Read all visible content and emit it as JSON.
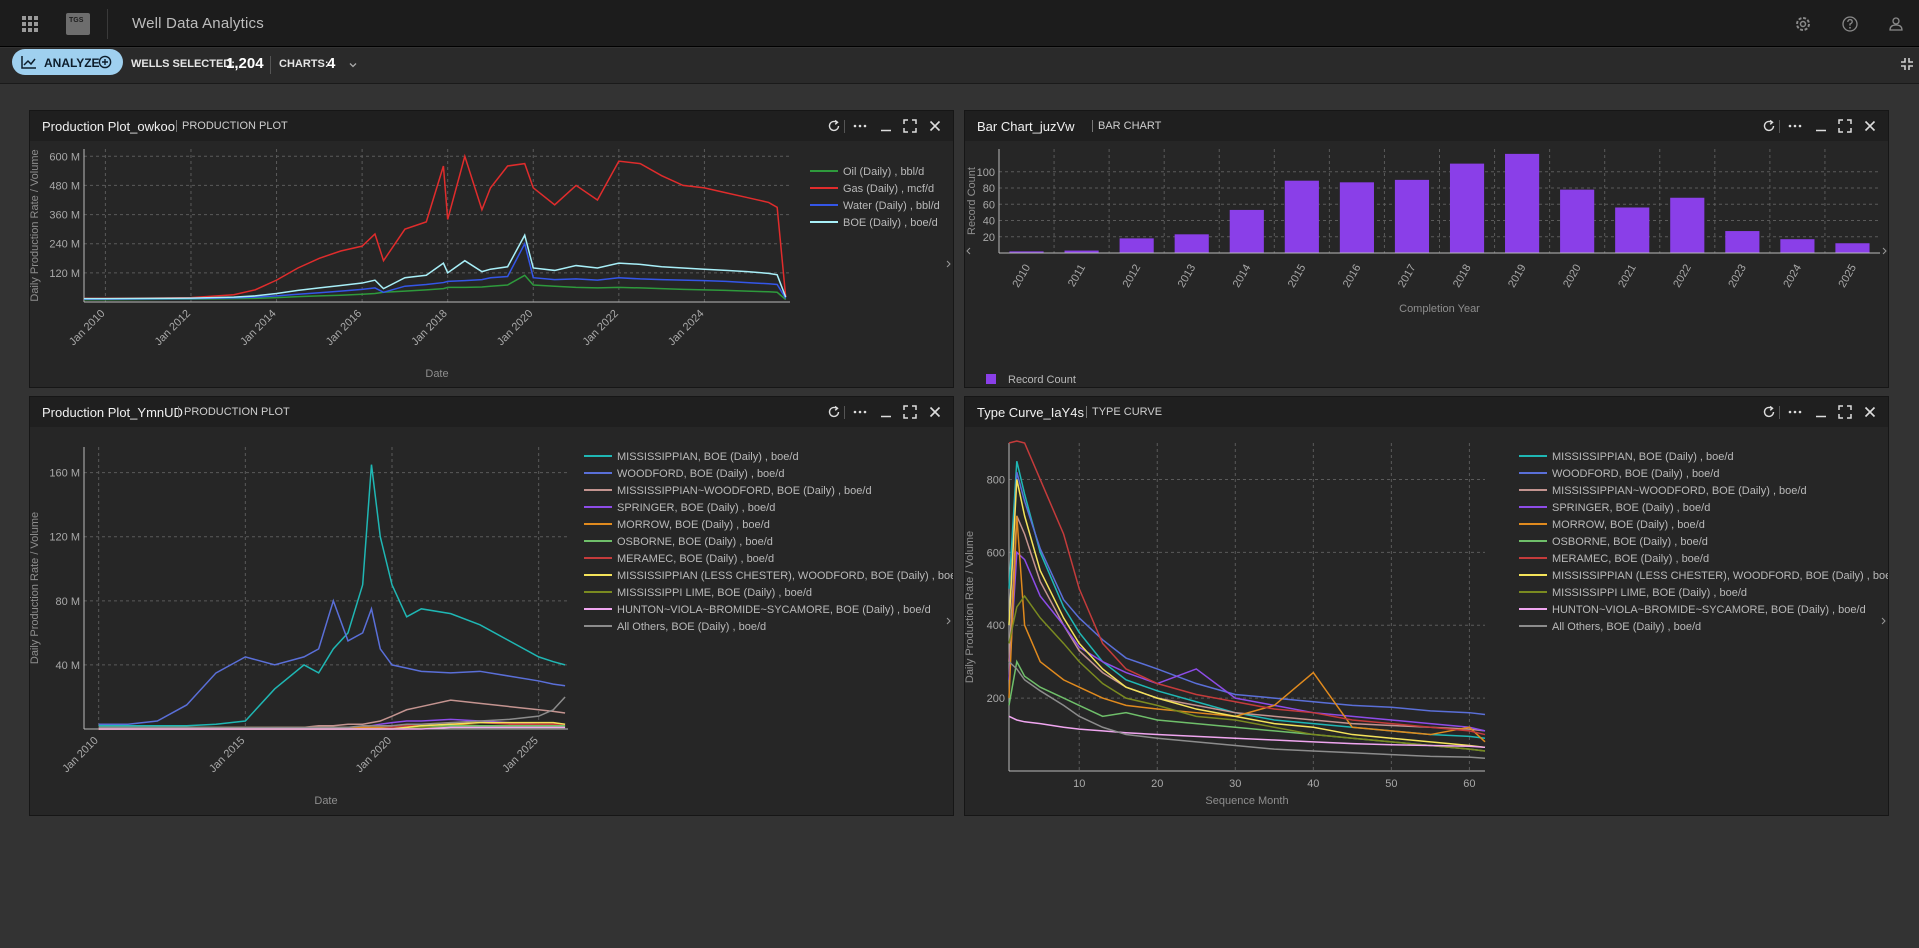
{
  "app": {
    "title": "Well Data Analytics",
    "logo_text": "TGS"
  },
  "toolbar": {
    "analyze_label": "ANALYZE",
    "wells_selected_label": "WELLS SELECTED:",
    "wells_selected_value": "1,204",
    "charts_label": "CHARTS:",
    "charts_value": "4"
  },
  "icons": {
    "apps": "apps-grid-icon",
    "settings": "gear-icon",
    "help": "help-icon",
    "user": "user-icon",
    "collapse": "collapse-icon"
  },
  "colors": {
    "accent": "#9fd0ef",
    "bar": "#8a3fe8",
    "background": "#333333",
    "panel": "#262626"
  },
  "panels": [
    {
      "name": "Production Plot_owkoo",
      "type": "PRODUCTION PLOT"
    },
    {
      "name": "Bar Chart_juzVw",
      "type": "BAR CHART"
    },
    {
      "name": "Production Plot_YmnUD",
      "type": "PRODUCTION PLOT"
    },
    {
      "name": "Type Curve_IaY4s",
      "type": "TYPE CURVE"
    }
  ],
  "chart_data": [
    {
      "type": "line",
      "xlabel": "Date",
      "ylabel": "Daily Production Rate / Volume",
      "x_ticks": [
        "Jan 2010",
        "Jan 2012",
        "Jan 2014",
        "Jan 2016",
        "Jan 2018",
        "Jan 2020",
        "Jan 2022",
        "Jan 2024"
      ],
      "y_ticks": [
        "120 M",
        "240 M",
        "360 M",
        "480 M",
        "600 M"
      ],
      "ylim": [
        0,
        630000000
      ],
      "legend_position": "right",
      "x": [
        2009.5,
        2010,
        2011,
        2012,
        2013,
        2013.5,
        2014,
        2014.5,
        2015,
        2015.5,
        2016,
        2016.3,
        2016.5,
        2017,
        2017.5,
        2017.9,
        2018,
        2018.4,
        2018.8,
        2019,
        2019.4,
        2019.8,
        2020,
        2020.5,
        2021,
        2021.5,
        2022,
        2022.5,
        2023,
        2023.5,
        2024,
        2024.5,
        2025,
        2025.5,
        2025.7,
        2025.9
      ],
      "series": [
        {
          "name": "Oil (Daily) , bbl/d",
          "color": "#2e9a3c",
          "values": [
            10000000.0,
            10000000.0,
            11000000.0,
            12000000.0,
            14000000.0,
            15000000.0,
            18000000.0,
            22000000.0,
            25000000.0,
            28000000.0,
            32000000.0,
            35000000.0,
            40000000.0,
            45000000.0,
            50000000.0,
            55000000.0,
            60000000.0,
            60000000.0,
            62000000.0,
            65000000.0,
            70000000.0,
            110000000.0,
            70000000.0,
            65000000.0,
            60000000.0,
            58000000.0,
            60000000.0,
            58000000.0,
            55000000.0,
            52000000.0,
            50000000.0,
            48000000.0,
            45000000.0,
            42000000.0,
            40000000.0,
            10000000.0
          ]
        },
        {
          "name": "Gas (Daily) , mcf/d",
          "color": "#e02c2c",
          "values": [
            15000000.0,
            15000000.0,
            16000000.0,
            18000000.0,
            30000000.0,
            50000000.0,
            90000000.0,
            140000000.0,
            180000000.0,
            210000000.0,
            230000000.0,
            280000000.0,
            170000000.0,
            300000000.0,
            330000000.0,
            560000000.0,
            340000000.0,
            600000000.0,
            380000000.0,
            470000000.0,
            560000000.0,
            570000000.0,
            470000000.0,
            400000000.0,
            480000000.0,
            420000000.0,
            580000000.0,
            570000000.0,
            520000000.0,
            480000000.0,
            470000000.0,
            450000000.0,
            430000000.0,
            410000000.0,
            390000000.0,
            20000000.0
          ]
        },
        {
          "name": "Water (Daily) , bbl/d",
          "color": "#3456e8",
          "values": [
            12000000.0,
            12000000.0,
            13000000.0,
            14000000.0,
            17000000.0,
            20000000.0,
            25000000.0,
            32000000.0,
            38000000.0,
            45000000.0,
            52000000.0,
            58000000.0,
            40000000.0,
            65000000.0,
            72000000.0,
            80000000.0,
            85000000.0,
            88000000.0,
            92000000.0,
            100000000.0,
            105000000.0,
            240000000.0,
            100000000.0,
            92000000.0,
            95000000.0,
            90000000.0,
            100000000.0,
            95000000.0,
            92000000.0,
            90000000.0,
            88000000.0,
            85000000.0,
            80000000.0,
            75000000.0,
            72000000.0,
            15000000.0
          ]
        },
        {
          "name": "BOE (Daily) , boe/d",
          "color": "#a8eff8",
          "values": [
            14000000.0,
            14000000.0,
            15000000.0,
            16000000.0,
            20000000.0,
            25000000.0,
            35000000.0,
            48000000.0,
            58000000.0,
            68000000.0,
            78000000.0,
            90000000.0,
            55000000.0,
            100000000.0,
            110000000.0,
            160000000.0,
            120000000.0,
            170000000.0,
            125000000.0,
            135000000.0,
            145000000.0,
            275000000.0,
            140000000.0,
            130000000.0,
            150000000.0,
            140000000.0,
            160000000.0,
            155000000.0,
            145000000.0,
            140000000.0,
            135000000.0,
            130000000.0,
            125000000.0,
            118000000.0,
            112000000.0,
            20000000.0
          ]
        }
      ]
    },
    {
      "type": "bar",
      "xlabel": "Completion Year",
      "ylabel": "Record Count",
      "categories": [
        "2010",
        "2011",
        "2012",
        "2013",
        "2014",
        "2015",
        "2016",
        "2017",
        "2018",
        "2019",
        "2020",
        "2021",
        "2022",
        "2023",
        "2024",
        "2025"
      ],
      "values": [
        2,
        3,
        18,
        23,
        53,
        89,
        87,
        90,
        110,
        122,
        78,
        56,
        68,
        27,
        17,
        12
      ],
      "y_ticks": [
        "20",
        "40",
        "60",
        "80",
        "100"
      ],
      "ylim": [
        0,
        128
      ],
      "series_name": "Record Count",
      "legend_position": "bottom-left",
      "color": "#8a3fe8"
    },
    {
      "type": "line",
      "xlabel": "Date",
      "ylabel": "Daily Production Rate / Volume",
      "x_ticks": [
        "Jan 2010",
        "Jan 2015",
        "Jan 2020",
        "Jan 2025"
      ],
      "y_ticks": [
        "40 M",
        "80 M",
        "120 M",
        "160 M"
      ],
      "ylim": [
        0,
        176000000
      ],
      "legend_position": "right",
      "x": [
        2010,
        2011,
        2012,
        2013,
        2014,
        2015,
        2016,
        2017,
        2017.5,
        2018,
        2018.5,
        2019,
        2019.3,
        2019.6,
        2020,
        2020.5,
        2021,
        2022,
        2023,
        2024,
        2025,
        2025.5,
        2025.9
      ],
      "series": [
        {
          "name": "MISSISSIPPIAN, BOE (Daily) , boe/d",
          "color": "#1fb7b4",
          "values": [
            2000000.0,
            2000000.0,
            2000000.0,
            2000000.0,
            3000000.0,
            5000000.0,
            25000000.0,
            40000000.0,
            35000000.0,
            50000000.0,
            60000000.0,
            90000000.0,
            165000000.0,
            120000000.0,
            90000000.0,
            70000000.0,
            75000000.0,
            72000000.0,
            65000000.0,
            55000000.0,
            45000000.0,
            42000000.0,
            40000000.0
          ]
        },
        {
          "name": "WOODFORD, BOE (Daily) , boe/d",
          "color": "#5a6fd8",
          "values": [
            3000000.0,
            3000000.0,
            5000000.0,
            15000000.0,
            35000000.0,
            45000000.0,
            40000000.0,
            45000000.0,
            50000000.0,
            80000000.0,
            55000000.0,
            60000000.0,
            75000000.0,
            50000000.0,
            40000000.0,
            38000000.0,
            36000000.0,
            35000000.0,
            36000000.0,
            33000000.0,
            30000000.0,
            28000000.0,
            27000000.0
          ]
        },
        {
          "name": "MISSISSIPPIAN~WOODFORD, BOE (Daily) , boe/d",
          "color": "#c49490",
          "values": [
            0,
            0,
            0,
            0,
            0,
            0,
            1000000.0,
            1000000.0,
            2000000.0,
            2000000.0,
            3000000.0,
            3000000.0,
            4000000.0,
            5000000.0,
            8000000.0,
            12000000.0,
            14000000.0,
            18000000.0,
            16000000.0,
            14000000.0,
            12000000.0,
            11000000.0,
            10000000.0
          ]
        },
        {
          "name": "SPRINGER, BOE (Daily) , boe/d",
          "color": "#8d4ce8",
          "values": [
            0,
            0,
            0,
            0,
            0,
            0,
            0,
            0,
            0,
            0,
            0,
            1000000.0,
            2000000.0,
            3000000.0,
            4000000.0,
            5000000.0,
            5000000.0,
            6000000.0,
            5000000.0,
            4000000.0,
            3000000.0,
            3000000.0,
            3000000.0
          ]
        },
        {
          "name": "MORROW, BOE (Daily) , boe/d",
          "color": "#e08a1e",
          "values": [
            1000000.0,
            1000000.0,
            1000000.0,
            1000000.0,
            1000000.0,
            1000000.0,
            1000000.0,
            1000000.0,
            1000000.0,
            1000000.0,
            1000000.0,
            1000000.0,
            1000000.0,
            1000000.0,
            1000000.0,
            2000000.0,
            2000000.0,
            3000000.0,
            2000000.0,
            2000000.0,
            2000000.0,
            2000000.0,
            2000000.0
          ]
        },
        {
          "name": "OSBORNE, BOE (Daily) , boe/d",
          "color": "#6fbf6a",
          "values": [
            0,
            0,
            0,
            0,
            0,
            0,
            0,
            0,
            0,
            0,
            0,
            0,
            0,
            0,
            1000000.0,
            1000000.0,
            1000000.0,
            2000000.0,
            2000000.0,
            2000000.0,
            2000000.0,
            2000000.0,
            2000000.0
          ]
        },
        {
          "name": "MERAMEC, BOE (Daily) , boe/d",
          "color": "#c43b3b",
          "values": [
            0,
            0,
            0,
            0,
            0,
            0,
            0,
            0,
            0,
            0,
            0,
            0,
            0,
            0,
            1000000.0,
            2000000.0,
            3000000.0,
            4000000.0,
            4000000.0,
            3000000.0,
            3000000.0,
            3000000.0,
            3000000.0
          ]
        },
        {
          "name": "MISSISSIPPIAN (LESS CHESTER), WOODFORD, BOE (Daily) , boe/d",
          "color": "#f4e35a",
          "values": [
            0,
            0,
            0,
            0,
            0,
            0,
            0,
            0,
            0,
            0,
            0,
            0,
            0,
            0,
            0,
            1000000.0,
            2000000.0,
            3000000.0,
            4000000.0,
            4000000.0,
            4000000.0,
            4000000.0,
            3000000.0
          ]
        },
        {
          "name": "MISSISSIPPI LIME, BOE (Daily) , boe/d",
          "color": "#7a8a20",
          "values": [
            0,
            0,
            0,
            0,
            0,
            0,
            0,
            0,
            0,
            0,
            0,
            0,
            0,
            0,
            0,
            0,
            1000000.0,
            1000000.0,
            1000000.0,
            1000000.0,
            1000000.0,
            1000000.0,
            1000000.0
          ]
        },
        {
          "name": "HUNTON~VIOLA~BROMIDE~SYCAMORE, BOE (Daily) , boe/d",
          "color": "#f0a6f0",
          "values": [
            0,
            0,
            0,
            0,
            0,
            0,
            0,
            0,
            0,
            0,
            0,
            0,
            0,
            0,
            0,
            0,
            0,
            1000000.0,
            1000000.0,
            1000000.0,
            1000000.0,
            1000000.0,
            1000000.0
          ]
        },
        {
          "name": "All Others, BOE (Daily) , boe/d",
          "color": "#8c8c8c",
          "values": [
            1000000.0,
            1000000.0,
            1000000.0,
            1000000.0,
            1000000.0,
            1000000.0,
            1000000.0,
            1000000.0,
            1000000.0,
            1000000.0,
            1000000.0,
            2000000.0,
            2000000.0,
            2000000.0,
            2000000.0,
            3000000.0,
            3000000.0,
            4000000.0,
            5000000.0,
            6000000.0,
            8000000.0,
            12000000.0,
            20000000.0
          ]
        }
      ]
    },
    {
      "type": "line",
      "xlabel": "Sequence Month",
      "ylabel": "Daily Production Rate / Volume",
      "x_ticks": [
        "10",
        "20",
        "30",
        "40",
        "50",
        "60"
      ],
      "y_ticks": [
        "200",
        "400",
        "600",
        "800"
      ],
      "xlim": [
        1,
        62
      ],
      "ylim": [
        0,
        900
      ],
      "legend_position": "right",
      "x": [
        1,
        2,
        3,
        5,
        8,
        10,
        13,
        16,
        20,
        25,
        30,
        35,
        40,
        45,
        50,
        55,
        60,
        62
      ],
      "series": [
        {
          "name": "MISSISSIPPIAN, BOE (Daily) , boe/d",
          "color": "#1fb7b4",
          "values": [
            500,
            850,
            760,
            600,
            450,
            380,
            300,
            250,
            220,
            190,
            160,
            140,
            130,
            120,
            110,
            100,
            95,
            90
          ]
        },
        {
          "name": "WOODFORD, BOE (Daily) , boe/d",
          "color": "#5a6fd8",
          "values": [
            400,
            820,
            740,
            610,
            470,
            420,
            360,
            310,
            280,
            240,
            210,
            200,
            190,
            180,
            175,
            165,
            160,
            155
          ]
        },
        {
          "name": "MISSISSIPPIAN~WOODFORD, BOE (Daily) , boe/d",
          "color": "#c49490",
          "values": [
            300,
            700,
            650,
            520,
            400,
            330,
            270,
            230,
            200,
            180,
            160,
            150,
            140,
            130,
            125,
            120,
            115,
            110
          ]
        },
        {
          "name": "SPRINGER, BOE (Daily) , boe/d",
          "color": "#8d4ce8",
          "values": [
            250,
            600,
            580,
            480,
            400,
            340,
            300,
            270,
            240,
            280,
            200,
            180,
            160,
            150,
            140,
            130,
            120,
            110
          ]
        },
        {
          "name": "MORROW, BOE (Daily) , boe/d",
          "color": "#e08a1e",
          "values": [
            200,
            700,
            400,
            300,
            250,
            230,
            200,
            180,
            170,
            160,
            150,
            180,
            270,
            120,
            110,
            100,
            120,
            80
          ]
        },
        {
          "name": "OSBORNE, BOE (Daily) , boe/d",
          "color": "#6fbf6a",
          "values": [
            180,
            300,
            260,
            230,
            200,
            180,
            150,
            160,
            140,
            130,
            120,
            110,
            100,
            90,
            80,
            70,
            60,
            55
          ]
        },
        {
          "name": "MERAMEC, BOE (Daily) , boe/d",
          "color": "#c43b3b",
          "values": [
            900,
            950,
            900,
            800,
            650,
            500,
            350,
            280,
            240,
            210,
            190,
            170,
            160,
            140,
            130,
            120,
            110,
            100
          ]
        },
        {
          "name": "MISSISSIPPIAN (LESS CHESTER), WOODFORD, BOE (Daily) , boe/d",
          "color": "#f4e35a",
          "values": [
            400,
            800,
            700,
            550,
            420,
            350,
            280,
            230,
            200,
            170,
            150,
            130,
            120,
            100,
            90,
            80,
            70,
            65
          ]
        },
        {
          "name": "MISSISSIPPI LIME, BOE (Daily) , boe/d",
          "color": "#7a8a20",
          "values": [
            350,
            450,
            480,
            420,
            350,
            300,
            240,
            200,
            180,
            150,
            140,
            120,
            100,
            90,
            80,
            70,
            60,
            55
          ]
        },
        {
          "name": "HUNTON~VIOLA~BROMIDE~SYCAMORE, BOE (Daily) , boe/d",
          "color": "#f0a6f0",
          "values": [
            150,
            140,
            135,
            130,
            120,
            115,
            110,
            105,
            100,
            95,
            90,
            85,
            80,
            75,
            72,
            70,
            68,
            65
          ]
        },
        {
          "name": "All Others, BOE (Daily) , boe/d",
          "color": "#8c8c8c",
          "values": [
            300,
            280,
            250,
            220,
            180,
            150,
            120,
            100,
            90,
            80,
            70,
            60,
            55,
            50,
            45,
            40,
            38,
            35
          ]
        }
      ]
    }
  ]
}
